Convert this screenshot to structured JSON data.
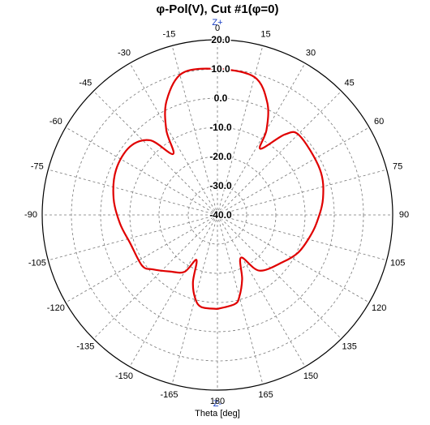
{
  "chart_data": {
    "type": "polar",
    "title": "φ-Pol(V), Cut #1(φ=0)",
    "top_label": "Z+",
    "bottom_label": "Z-",
    "x_label": "Theta [deg]",
    "x": [
      -180,
      -170,
      -165,
      -160,
      -155,
      -150,
      -140,
      -130,
      -124,
      -108,
      -95,
      -81,
      -66,
      -52,
      -42,
      -36,
      -31,
      -24,
      -14,
      0,
      15,
      24,
      30,
      33,
      40,
      46,
      66,
      81,
      95,
      105,
      115,
      125,
      143,
      151,
      159,
      165,
      169,
      180
    ],
    "values": [
      -7.8,
      -8.0,
      -10.5,
      -15.5,
      -23,
      -17.5,
      -14.7,
      -11,
      -8.9,
      -8.6,
      -6.5,
      -4,
      -2,
      -2,
      -5.6,
      -14.2,
      -6,
      2.8,
      10,
      10,
      8.9,
      2,
      -6.4,
      -13,
      -4,
      -0.9,
      -1.6,
      -3.4,
      -6,
      -7.8,
      -9.5,
      -12.2,
      -16.1,
      -23.3,
      -16.4,
      -11,
      -8.9,
      -7.8
    ],
    "color": "#e00000",
    "xticks": [
      0,
      15,
      30,
      45,
      60,
      75,
      90,
      105,
      120,
      135,
      150,
      165,
      180,
      -165,
      -150,
      -135,
      -120,
      -105,
      -90,
      -75,
      -60,
      -45,
      -30,
      -15
    ],
    "ylim": [
      -40,
      20
    ],
    "yticks": [
      {
        "value": -40,
        "label": "-40.0"
      },
      {
        "value": -30,
        "label": "-30.0"
      },
      {
        "value": -20,
        "label": "-20.0"
      },
      {
        "value": -10,
        "label": "-10.0"
      },
      {
        "value": 0,
        "label": "0.0"
      },
      {
        "value": 10,
        "label": "10.0"
      },
      {
        "value": 20,
        "label": "20.0"
      }
    ],
    "grid": true
  }
}
